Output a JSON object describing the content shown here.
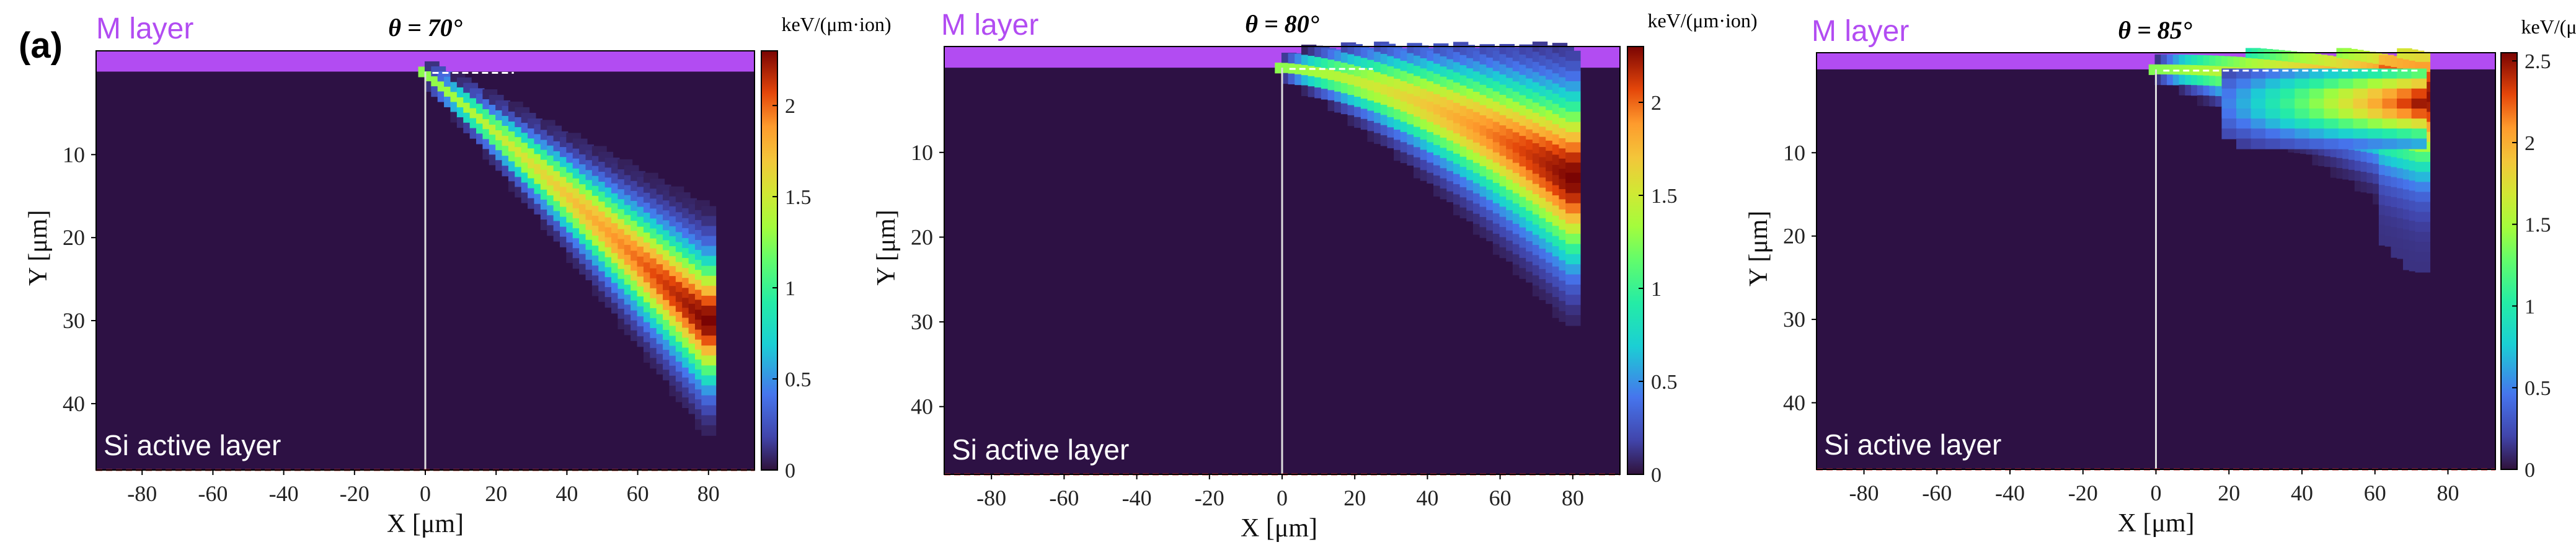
{
  "figure": {
    "panel_label": "(a)",
    "theta_symbol": "θ",
    "colorbar_unit": "keV/(μm·ion)",
    "m_layer_label": "M layer",
    "si_layer_label": "Si active layer",
    "colors": {
      "m_layer": "#b24cf2",
      "m_layer_text": "#b24cf2",
      "background": "#2d1144",
      "si_boundary": "#e0302a",
      "interface_dash": "#ffffff"
    }
  },
  "chart_data": [
    {
      "type": "heatmap",
      "title": "θ = 70°",
      "angle_deg": 70,
      "xlabel": "X [μm]",
      "ylabel": "Y [μm]",
      "xlim": [
        -93,
        93
      ],
      "ylim": [
        48,
        -2.5
      ],
      "m_layer_bottom": 0,
      "x_ticks": [
        -80,
        -60,
        -40,
        -20,
        0,
        20,
        40,
        60,
        80
      ],
      "y_ticks": [
        10,
        20,
        30,
        40
      ],
      "colorbar": {
        "range": [
          0,
          2.3
        ],
        "ticks": [
          0,
          0.5,
          1,
          1.5,
          2
        ]
      },
      "track": {
        "start_x": 0,
        "end_x": 80,
        "end_y": 30,
        "peak": 2.3,
        "end_plateau": false
      }
    },
    {
      "type": "heatmap",
      "title": "θ = 80°",
      "angle_deg": 80,
      "xlabel": "X [μm]",
      "ylabel": "Y [μm]",
      "xlim": [
        -93,
        93
      ],
      "ylim": [
        48,
        -2.5
      ],
      "m_layer_bottom": 0,
      "x_ticks": [
        -80,
        -60,
        -40,
        -20,
        0,
        20,
        40,
        60,
        80
      ],
      "y_ticks": [
        10,
        20,
        30,
        40
      ],
      "colorbar": {
        "range": [
          0,
          2.3
        ],
        "ticks": [
          0,
          0.5,
          1,
          1.5,
          2
        ]
      },
      "track": {
        "start_x": 0,
        "end_x": 80,
        "end_y": 13,
        "peak": 2.3,
        "end_plateau": false
      }
    },
    {
      "type": "heatmap",
      "title": "θ = 85°",
      "angle_deg": 85,
      "xlabel": "X [μm]",
      "ylabel": "Y [μm]",
      "xlim": [
        -93,
        93
      ],
      "ylim": [
        48,
        -2
      ],
      "m_layer_bottom": 0,
      "x_ticks": [
        -80,
        -60,
        -40,
        -20,
        0,
        20,
        40,
        60,
        80
      ],
      "y_ticks": [
        10,
        20,
        30,
        40
      ],
      "colorbar": {
        "range": [
          0,
          2.55
        ],
        "ticks": [
          0,
          0.5,
          1,
          1.5,
          2,
          2.5
        ]
      },
      "track": {
        "start_x": 0,
        "end_x": 73,
        "end_y": 6,
        "peak": 2.5,
        "end_plateau": true
      }
    }
  ]
}
